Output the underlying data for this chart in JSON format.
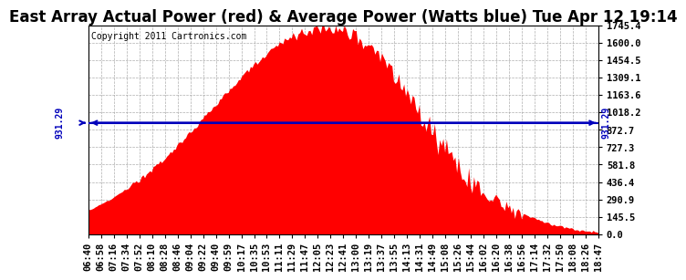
{
  "title": "East Array Actual Power (red) & Average Power (Watts blue) Tue Apr 12 19:14",
  "copyright": "Copyright 2011 Cartronics.com",
  "avg_power": 931.29,
  "y_max": 1745.4,
  "y_min": 0.0,
  "y_ticks": [
    0.0,
    145.5,
    290.9,
    436.4,
    581.8,
    727.3,
    872.7,
    1018.2,
    1163.6,
    1309.1,
    1454.5,
    1600.0,
    1745.4
  ],
  "x_labels": [
    "06:40",
    "06:58",
    "07:16",
    "07:34",
    "07:52",
    "08:10",
    "08:28",
    "08:46",
    "09:04",
    "09:22",
    "09:40",
    "09:59",
    "10:17",
    "10:35",
    "10:53",
    "11:11",
    "11:29",
    "11:47",
    "12:05",
    "12:23",
    "12:41",
    "13:00",
    "13:19",
    "13:37",
    "13:55",
    "14:13",
    "14:31",
    "14:49",
    "15:08",
    "15:26",
    "15:44",
    "16:02",
    "16:20",
    "16:38",
    "16:56",
    "17:14",
    "17:32",
    "17:50",
    "18:08",
    "18:26",
    "18:47"
  ],
  "fill_color": "#FF0000",
  "line_color": "#0000BB",
  "background_color": "#FFFFFF",
  "grid_color": "#999999",
  "title_fontsize": 12,
  "copyright_fontsize": 7,
  "tick_fontsize": 7.5
}
